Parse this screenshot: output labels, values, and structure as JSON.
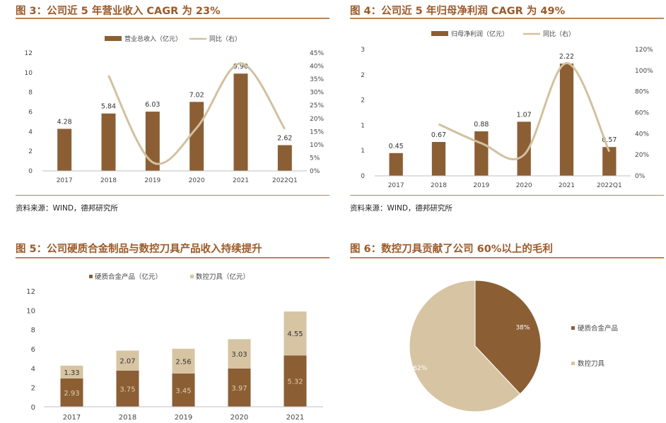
{
  "colors": {
    "title": "#9b5a2a",
    "rule": "#b8865a",
    "dark": "#8b5e34",
    "light": "#d7c4a3",
    "line": "#d3c09e"
  },
  "panels": [
    {
      "title": "图 3：公司近 5 年营业收入 CAGR 为 23%",
      "source": "资料来源：WIND，德邦研究所"
    },
    {
      "title": "图 4：公司近 5 年归母净利润 CAGR 为 49%",
      "source": "资料来源：WIND，德邦研究所"
    },
    {
      "title": "图 5：公司硬质合金制品与数控刀具产品收入持续提升"
    },
    {
      "title": "图 6：数控刀具贡献了公司 60%以上的毛利"
    }
  ],
  "chart_data": [
    {
      "type": "bar",
      "categories": [
        "2017",
        "2018",
        "2019",
        "2020",
        "2021",
        "2022Q1"
      ],
      "series": [
        {
          "name": "营业总收入（亿元）",
          "values": [
            4.28,
            5.84,
            6.03,
            7.02,
            9.9,
            2.62
          ],
          "labels": [
            "4.28",
            "5.84",
            "6.03",
            "7.02",
            "9.90",
            "2.62"
          ]
        },
        {
          "name": "同比（右）",
          "values": [
            null,
            36.4,
            3.3,
            16.4,
            41.0,
            16.0
          ]
        }
      ],
      "y_ticks": [
        "0",
        "2",
        "4",
        "6",
        "8",
        "10",
        "12"
      ],
      "y2_ticks": [
        "0%",
        "5%",
        "10%",
        "15%",
        "20%",
        "25%",
        "30%",
        "35%",
        "40%",
        "45%"
      ],
      "ylim": [
        0,
        12
      ],
      "y2lim": [
        0,
        45
      ]
    },
    {
      "type": "bar",
      "categories": [
        "2017",
        "2018",
        "2019",
        "2020",
        "2021",
        "2022Q1"
      ],
      "series": [
        {
          "name": "归母净利润（亿元）",
          "values": [
            0.45,
            0.67,
            0.88,
            1.07,
            2.22,
            0.57
          ],
          "labels": [
            "0.45",
            "0.67",
            "0.88",
            "1.07",
            "2.22",
            "0.57"
          ]
        },
        {
          "name": "同比（右）",
          "values": [
            null,
            49,
            31,
            20,
            107,
            23
          ]
        }
      ],
      "y_ticks": [
        "0",
        "1",
        "1",
        "2",
        "2",
        "3"
      ],
      "y2_ticks": [
        "0%",
        "20%",
        "40%",
        "60%",
        "80%",
        "100%",
        "120%"
      ],
      "ylim": [
        0,
        2.5
      ],
      "y2lim": [
        0,
        120
      ]
    },
    {
      "type": "stacked_bar",
      "categories": [
        "2017",
        "2018",
        "2019",
        "2020",
        "2021"
      ],
      "series": [
        {
          "name": "硬质合金产品（亿元）",
          "values": [
            2.93,
            3.75,
            3.45,
            3.97,
            5.32
          ]
        },
        {
          "name": "数控刀具（亿元）",
          "values": [
            1.33,
            2.07,
            2.56,
            3.03,
            4.55
          ]
        }
      ],
      "y_ticks": [
        "0",
        "2",
        "4",
        "6",
        "8",
        "10",
        "12"
      ],
      "ylim": [
        0,
        12
      ]
    },
    {
      "type": "pie",
      "slices": [
        {
          "name": "硬质合金产品",
          "value": 38,
          "label": "38%"
        },
        {
          "name": "数控刀具",
          "value": 62,
          "label": "62%"
        }
      ]
    }
  ]
}
